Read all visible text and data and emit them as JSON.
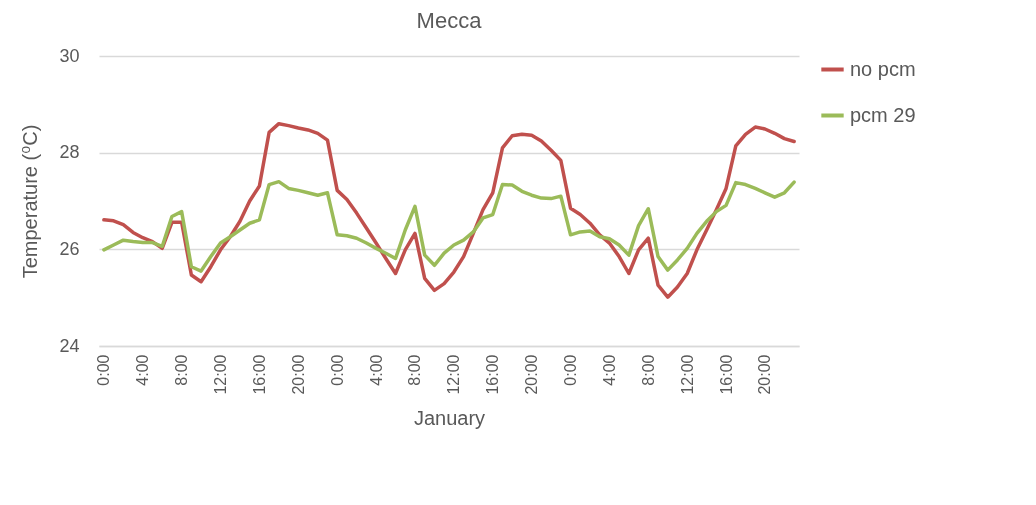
{
  "chart_data": {
    "type": "line",
    "title": "Mecca",
    "xlabel": "January",
    "ylabel": "Temperature (⁰C)",
    "categories": [
      "0:00",
      null,
      null,
      null,
      "4:00",
      null,
      null,
      null,
      "8:00",
      null,
      null,
      null,
      "12:00",
      null,
      null,
      null,
      "16:00",
      null,
      null,
      null,
      "20:00",
      null,
      null,
      null,
      "0:00",
      null,
      null,
      null,
      "4:00",
      null,
      null,
      null,
      "8:00",
      null,
      null,
      null,
      "12:00",
      null,
      null,
      null,
      "16:00",
      null,
      null,
      null,
      "20:00",
      null,
      null,
      null,
      "0:00",
      null,
      null,
      null,
      "4:00",
      null,
      null,
      null,
      "8:00",
      null,
      null,
      null,
      "12:00",
      null,
      null,
      null,
      "16:00",
      null,
      null,
      null,
      "20:00",
      null,
      null,
      null
    ],
    "series": [
      {
        "name": "no pcm",
        "color": "#c0504d",
        "values": [
          26.61,
          26.59,
          26.51,
          26.35,
          26.24,
          26.16,
          26.02,
          26.56,
          26.56,
          25.47,
          25.33,
          25.64,
          25.99,
          26.26,
          26.58,
          27.0,
          27.31,
          28.42,
          28.6,
          28.56,
          28.51,
          28.47,
          28.4,
          28.26,
          27.22,
          27.03,
          26.75,
          26.44,
          26.13,
          25.81,
          25.5,
          25.99,
          26.33,
          25.4,
          25.15,
          25.29,
          25.53,
          25.85,
          26.33,
          26.82,
          27.17,
          28.1,
          28.35,
          28.38,
          28.36,
          28.24,
          28.05,
          27.84,
          26.85,
          26.72,
          26.54,
          26.3,
          26.13,
          25.85,
          25.5,
          25.99,
          26.23,
          25.26,
          25.01,
          25.22,
          25.5,
          25.99,
          26.4,
          26.82,
          27.26,
          28.14,
          28.38,
          28.53,
          28.49,
          28.4,
          28.29,
          28.23
        ]
      },
      {
        "name": "pcm 29",
        "color": "#9bbb59",
        "values": [
          25.99,
          26.09,
          26.19,
          26.16,
          26.14,
          26.14,
          26.06,
          26.68,
          26.78,
          25.64,
          25.55,
          25.85,
          26.13,
          26.26,
          26.4,
          26.54,
          26.61,
          27.34,
          27.4,
          27.26,
          27.22,
          27.17,
          27.12,
          27.17,
          26.3,
          26.28,
          26.23,
          26.13,
          26.02,
          25.92,
          25.81,
          26.4,
          26.89,
          25.88,
          25.67,
          25.92,
          26.09,
          26.19,
          26.36,
          26.65,
          26.72,
          27.34,
          27.33,
          27.2,
          27.12,
          27.06,
          27.05,
          27.1,
          26.3,
          26.36,
          26.38,
          26.26,
          26.22,
          26.09,
          25.88,
          26.49,
          26.84,
          25.85,
          25.57,
          25.78,
          26.02,
          26.33,
          26.58,
          26.78,
          26.91,
          27.38,
          27.34,
          27.26,
          27.17,
          27.08,
          27.17,
          27.39
        ]
      }
    ],
    "ylim": [
      24,
      30
    ],
    "yticks": [
      24,
      26,
      28,
      30
    ],
    "grid": "y",
    "legend": "right"
  }
}
